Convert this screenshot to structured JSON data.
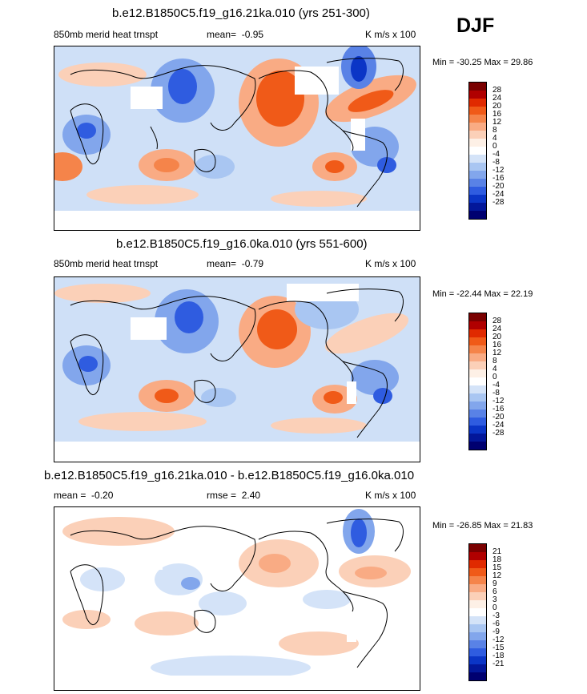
{
  "season": "DJF",
  "panels": [
    {
      "title": "b.e12.B1850C5.f19_g16.21ka.010 (yrs 251-300)",
      "field": "850mb merid heat trnspt",
      "mean_label": "mean=",
      "mean_value": "-0.95",
      "units": "K m/s x 100",
      "minmax": "Min = -30.25 Max =  29.86",
      "colorbar_labels": [
        "28",
        "24",
        "20",
        "16",
        "12",
        "8",
        "4",
        "0",
        "-4",
        "-8",
        "-12",
        "-16",
        "-20",
        "-24",
        "-28"
      ]
    },
    {
      "title": "b.e12.B1850C5.f19_g16.0ka.010 (yrs 551-600)",
      "field": "850mb merid heat trnspt",
      "mean_label": "mean=",
      "mean_value": "-0.79",
      "units": "K m/s x 100",
      "minmax": "Min = -22.44 Max =  22.19",
      "colorbar_labels": [
        "28",
        "24",
        "20",
        "16",
        "12",
        "8",
        "4",
        "0",
        "-4",
        "-8",
        "-12",
        "-16",
        "-20",
        "-24",
        "-28"
      ]
    },
    {
      "title": "b.e12.B1850C5.f19_g16.21ka.010 - b.e12.B1850C5.f19_g16.0ka.010",
      "mean_label": "mean =",
      "mean_value": "-0.20",
      "rmse_label": "rmse =",
      "rmse_value": "2.40",
      "units": "K m/s x 100",
      "minmax": "Min = -26.85 Max =  21.83",
      "colorbar_labels": [
        "21",
        "18",
        "15",
        "12",
        "9",
        "6",
        "3",
        "0",
        "-3",
        "-6",
        "-9",
        "-12",
        "-15",
        "-18",
        "-21"
      ]
    }
  ],
  "colorbar_colors": [
    "#7a0000",
    "#b00000",
    "#e02a00",
    "#f05a18",
    "#f5844a",
    "#f9ab84",
    "#fbd0b8",
    "#fdf0e6",
    "#ffffff",
    "#d4e3f8",
    "#a9c6f2",
    "#82a6ec",
    "#5982e6",
    "#2f5ce0",
    "#0b35c6",
    "#03179a",
    "#000070"
  ]
}
